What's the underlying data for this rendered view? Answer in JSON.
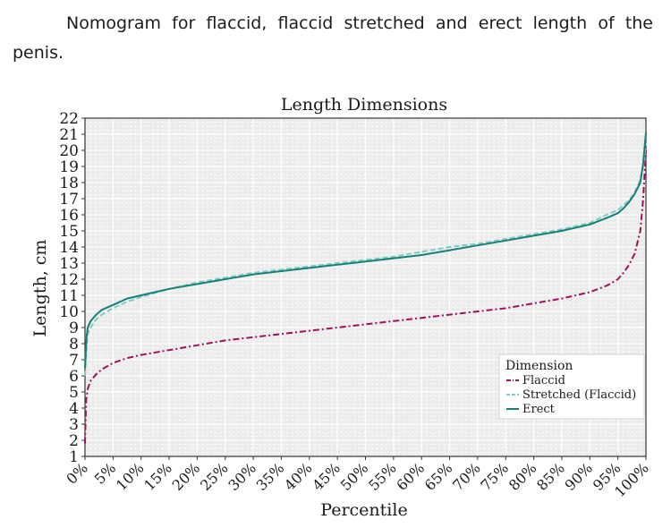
{
  "caption": "Nomogram for flaccid, flaccid stretched and erect length of the penis.",
  "chart_data": {
    "type": "line",
    "title": "Length Dimensions",
    "xlabel": "Percentile",
    "ylabel": "Length, cm",
    "xlim": [
      0,
      100
    ],
    "ylim": [
      1,
      22
    ],
    "x_ticks": [
      "0%",
      "5%",
      "10%",
      "15%",
      "20%",
      "25%",
      "30%",
      "35%",
      "40%",
      "45%",
      "50%",
      "55%",
      "60%",
      "65%",
      "70%",
      "75%",
      "80%",
      "85%",
      "90%",
      "95%",
      "100%"
    ],
    "y_ticks": [
      "1",
      "2",
      "3",
      "4",
      "5",
      "6",
      "7",
      "8",
      "9",
      "10",
      "11",
      "12",
      "13",
      "14",
      "15",
      "16",
      "17",
      "18",
      "19",
      "20",
      "21",
      "22"
    ],
    "grid": true,
    "legend": {
      "title": "Dimension",
      "placement": "bottom-right"
    },
    "series": [
      {
        "name": "Flaccid",
        "color": "#a0105a",
        "style": "dash-dot",
        "x": [
          0,
          0.2,
          0.5,
          1,
          2,
          3,
          5,
          7.5,
          10,
          15,
          20,
          25,
          30,
          35,
          40,
          45,
          50,
          55,
          60,
          65,
          70,
          75,
          80,
          85,
          90,
          93,
          95,
          96,
          97,
          98,
          99,
          99.5,
          100
        ],
        "y": [
          1.8,
          4.5,
          5.2,
          5.7,
          6.1,
          6.4,
          6.8,
          7.1,
          7.3,
          7.6,
          7.9,
          8.2,
          8.4,
          8.6,
          8.8,
          9.0,
          9.2,
          9.4,
          9.6,
          9.8,
          10.0,
          10.2,
          10.5,
          10.8,
          11.2,
          11.6,
          12.0,
          12.4,
          12.9,
          13.6,
          15.0,
          17.0,
          20.0
        ]
      },
      {
        "name": "Stretched (Flaccid)",
        "color": "#7dcdc4",
        "style": "dashed",
        "x": [
          0,
          0.3,
          0.5,
          1,
          2,
          3,
          5,
          7.5,
          10,
          15,
          20,
          25,
          30,
          35,
          40,
          45,
          50,
          55,
          60,
          65,
          70,
          75,
          80,
          85,
          90,
          93,
          95,
          96,
          97,
          98,
          99,
          99.5,
          100
        ],
        "y": [
          6.0,
          8.0,
          8.6,
          9.0,
          9.5,
          9.8,
          10.2,
          10.6,
          10.9,
          11.4,
          11.8,
          12.1,
          12.4,
          12.6,
          12.8,
          13.0,
          13.2,
          13.4,
          13.7,
          14.0,
          14.2,
          14.5,
          14.8,
          15.1,
          15.5,
          16.0,
          16.3,
          16.6,
          16.9,
          17.4,
          18.2,
          19.0,
          20.5
        ]
      },
      {
        "name": "Erect",
        "color": "#177f76",
        "style": "solid",
        "x": [
          0,
          0.3,
          0.5,
          1,
          2,
          3,
          5,
          7.5,
          10,
          15,
          20,
          25,
          30,
          35,
          40,
          45,
          50,
          55,
          60,
          65,
          70,
          75,
          80,
          85,
          90,
          93,
          95,
          96,
          97,
          98,
          99,
          99.5,
          100
        ],
        "y": [
          6.5,
          8.5,
          9.0,
          9.4,
          9.8,
          10.1,
          10.4,
          10.8,
          11.0,
          11.4,
          11.7,
          12.0,
          12.3,
          12.5,
          12.7,
          12.9,
          13.1,
          13.3,
          13.5,
          13.8,
          14.1,
          14.4,
          14.7,
          15.0,
          15.4,
          15.8,
          16.1,
          16.4,
          16.8,
          17.3,
          18.0,
          19.2,
          21.1
        ]
      }
    ]
  }
}
